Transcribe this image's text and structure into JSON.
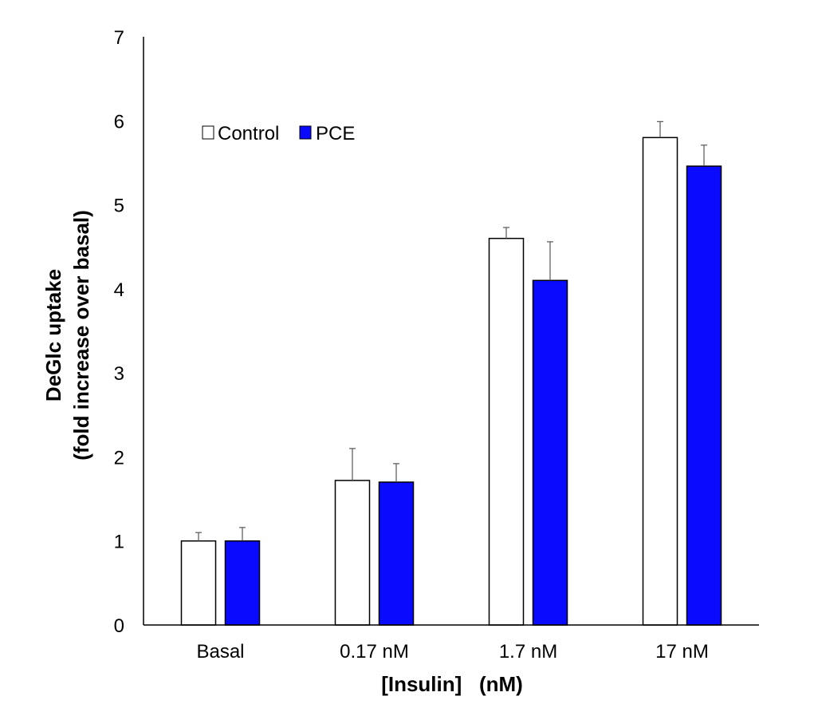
{
  "chart_data": {
    "type": "bar",
    "title": "",
    "xlabel": "[Insulin]   (nM)",
    "ylabel_lines": [
      "DeGlc uptake",
      "(fold increase over basal)"
    ],
    "ylabel": "DeGlc uptake (fold increase over basal)",
    "ylim": [
      0,
      7
    ],
    "yticks": [
      0,
      1,
      2,
      3,
      4,
      5,
      6,
      7
    ],
    "grid": false,
    "legend_position": "top-left",
    "categories": [
      "Basal",
      "0.17 nM",
      "1.7 nM",
      "17 nM"
    ],
    "series": [
      {
        "name": "Control",
        "color": "#ffffff",
        "values": [
          1.0,
          1.72,
          4.6,
          5.8
        ],
        "error_plus": [
          0.1,
          0.38,
          0.13,
          0.19
        ]
      },
      {
        "name": "PCE",
        "color": "#0a0aff",
        "values": [
          1.0,
          1.7,
          4.1,
          5.46
        ],
        "error_plus": [
          0.16,
          0.22,
          0.46,
          0.25
        ]
      }
    ]
  }
}
